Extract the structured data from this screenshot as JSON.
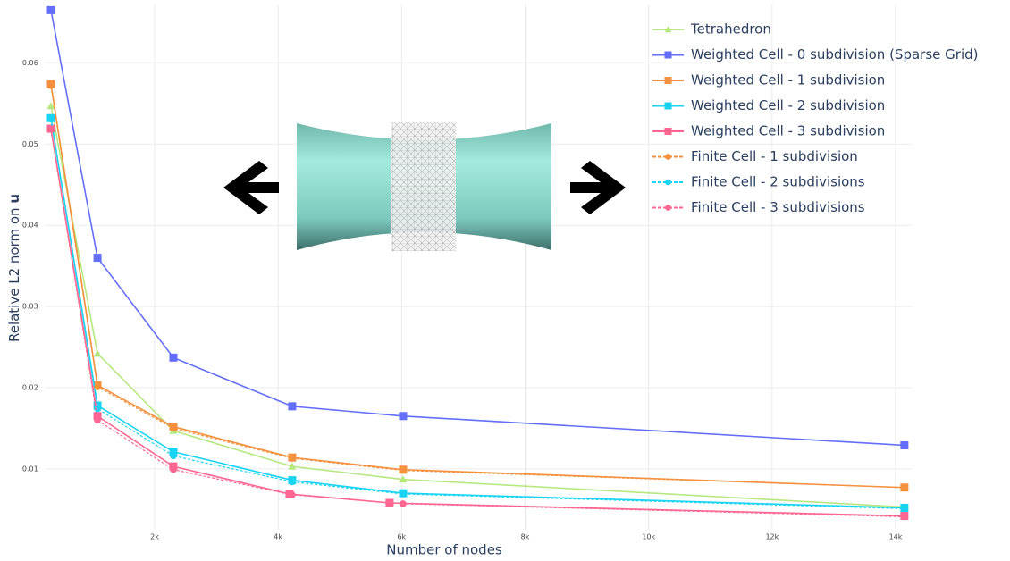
{
  "chart_data": {
    "type": "line",
    "x_label": "Number of nodes",
    "y_label": "Relative L2 norm on",
    "y_label_bold": "u",
    "xlim": [
      230,
      14260
    ],
    "ylim": [
      0.0025,
      0.0672
    ],
    "xticks": [
      {
        "value": 2000,
        "label": "2k"
      },
      {
        "value": 4000,
        "label": "4k"
      },
      {
        "value": 6000,
        "label": "6k"
      },
      {
        "value": 8000,
        "label": "8k"
      },
      {
        "value": 10000,
        "label": "10k"
      },
      {
        "value": 12000,
        "label": "12k"
      },
      {
        "value": 14000,
        "label": "14k"
      }
    ],
    "yticks": [
      0.01,
      0.02,
      0.03,
      0.04,
      0.05,
      0.06
    ],
    "grid": true,
    "legend": "top-right",
    "series": [
      {
        "name": "Tetrahedron",
        "color": "#b6e880",
        "marker": "triangle",
        "dash": false,
        "x": [
          321,
          1075,
          2304,
          4228,
          6023,
          14142
        ],
        "values": [
          0.0547,
          0.0242,
          0.0147,
          0.0103,
          0.0087,
          0.0053
        ]
      },
      {
        "name": "Weighted Cell - 0 subdivision (Sparse Grid)",
        "color": "#636efa",
        "marker": "square",
        "dash": false,
        "x": [
          321,
          1075,
          2304,
          4228,
          6023,
          14142
        ],
        "values": [
          0.0665,
          0.036,
          0.0237,
          0.0177,
          0.0165,
          0.0129
        ]
      },
      {
        "name": "Weighted Cell - 1 subdivision",
        "color": "#f5913e",
        "marker": "square",
        "dash": false,
        "x": [
          321,
          1075,
          2304,
          4228,
          6023,
          14142
        ],
        "values": [
          0.0574,
          0.0203,
          0.0152,
          0.0114,
          0.0099,
          0.0077
        ]
      },
      {
        "name": "Weighted Cell - 2 subdivision",
        "color": "#19d3f3",
        "marker": "square",
        "dash": false,
        "x": [
          321,
          1075,
          2304,
          4228,
          6023,
          14142
        ],
        "values": [
          0.0532,
          0.0178,
          0.0121,
          0.0086,
          0.007,
          0.0052
        ]
      },
      {
        "name": "Weighted Cell - 3 subdivision",
        "color": "#ff6692",
        "marker": "square",
        "dash": false,
        "x": [
          321,
          1075,
          2304,
          4185,
          5806,
          14142
        ],
        "values": [
          0.0519,
          0.0165,
          0.0103,
          0.0069,
          0.0058,
          0.0042
        ]
      },
      {
        "name": "Finite Cell - 1 subdivision",
        "color": "#f5913e",
        "marker": "circle",
        "dash": true,
        "x": [
          321,
          1075,
          2304,
          4228,
          6023,
          14142
        ],
        "values": [
          0.0572,
          0.0201,
          0.015,
          0.0113,
          0.0098,
          0.0077
        ]
      },
      {
        "name": "Finite Cell - 2 subdivisions",
        "color": "#19d3f3",
        "marker": "circle",
        "dash": true,
        "x": [
          321,
          1075,
          2304,
          4228,
          6023,
          14142
        ],
        "values": [
          0.0531,
          0.0174,
          0.0116,
          0.0084,
          0.0069,
          0.0051
        ]
      },
      {
        "name": "Finite Cell - 3 subdivisions",
        "color": "#ff6692",
        "marker": "circle",
        "dash": true,
        "x": [
          321,
          1075,
          2304,
          4228,
          6023,
          14142
        ],
        "values": [
          0.0518,
          0.016,
          0.0099,
          0.0068,
          0.0057,
          0.0041
        ]
      }
    ]
  }
}
